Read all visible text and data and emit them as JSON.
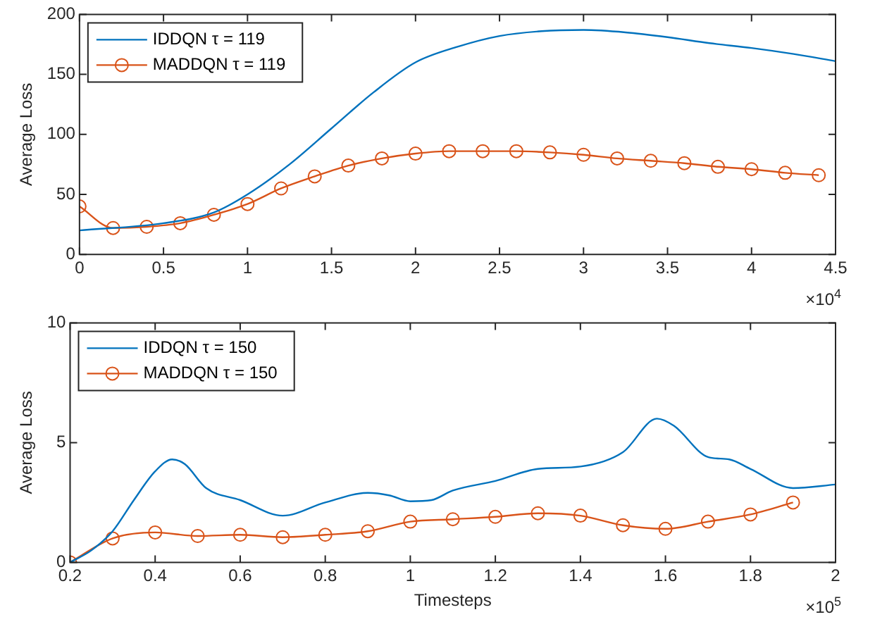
{
  "chart_data": [
    {
      "type": "line",
      "ylabel": "Average Loss",
      "xlim": [
        0,
        4.5
      ],
      "xticks": [
        0,
        0.5,
        1,
        1.5,
        2,
        2.5,
        3,
        3.5,
        4,
        4.5
      ],
      "ylim": [
        0,
        200
      ],
      "yticks": [
        0,
        50,
        100,
        150,
        200
      ],
      "grid": false,
      "legend": "top left",
      "annotations": [
        "×10$^{4}$"
      ],
      "series": [
        {
          "name": "IDDQN τ = 119",
          "color": "#0072bd",
          "marker": "none",
          "x": [
            0,
            0.5,
            0.8,
            1.0,
            1.25,
            1.5,
            1.75,
            2.0,
            2.25,
            2.5,
            2.75,
            3.0,
            3.25,
            3.5,
            3.75,
            4.0,
            4.25,
            4.5
          ],
          "values": [
            20,
            26,
            35,
            50,
            75,
            105,
            135,
            160,
            173,
            182,
            186,
            187,
            185,
            181,
            176,
            172,
            167,
            161
          ]
        },
        {
          "name": "MADDQN τ = 119",
          "color": "#d95319",
          "marker": "circle",
          "x": [
            0,
            0.2,
            0.4,
            0.6,
            0.8,
            1.0,
            1.2,
            1.4,
            1.6,
            1.8,
            2.0,
            2.2,
            2.4,
            2.6,
            2.8,
            3.0,
            3.2,
            3.4,
            3.6,
            3.8,
            4.0,
            4.2,
            4.4
          ],
          "values": [
            40,
            22,
            23,
            26,
            33,
            42,
            55,
            65,
            74,
            80,
            84,
            86,
            86,
            86,
            85,
            83,
            80,
            78,
            76,
            73,
            71,
            68,
            66
          ]
        }
      ]
    },
    {
      "type": "line",
      "xlabel": "Timesteps",
      "ylabel": "Average Loss",
      "xlim": [
        0.2,
        2
      ],
      "xticks": [
        0.2,
        0.4,
        0.6,
        0.8,
        1,
        1.2,
        1.4,
        1.6,
        1.8,
        2
      ],
      "ylim": [
        0,
        10
      ],
      "yticks": [
        0,
        5,
        10
      ],
      "grid": false,
      "legend": "top left",
      "annotations": [
        "×10$^{5}$"
      ],
      "series": [
        {
          "name": "IDDQN τ = 150",
          "color": "#0072bd",
          "marker": "none",
          "x": [
            0.2,
            0.25,
            0.3,
            0.35,
            0.4,
            0.44,
            0.47,
            0.52,
            0.6,
            0.7,
            0.8,
            0.9,
            0.95,
            1.0,
            1.05,
            1.1,
            1.2,
            1.3,
            1.4,
            1.5,
            1.58,
            1.62,
            1.7,
            1.75,
            1.8,
            1.9,
            2.0
          ],
          "values": [
            0,
            0.5,
            1.3,
            2.6,
            3.8,
            4.3,
            4.1,
            3.1,
            2.6,
            1.95,
            2.5,
            2.9,
            2.8,
            2.55,
            2.6,
            3.0,
            3.4,
            3.9,
            4.0,
            4.6,
            6.0,
            5.7,
            4.4,
            4.3,
            3.9,
            3.1,
            3.25
          ]
        },
        {
          "name": "MADDQN τ = 150",
          "color": "#d95319",
          "marker": "circle",
          "x": [
            0.2,
            0.3,
            0.4,
            0.5,
            0.6,
            0.7,
            0.8,
            0.9,
            1.0,
            1.1,
            1.2,
            1.3,
            1.4,
            1.5,
            1.6,
            1.7,
            1.8,
            1.9
          ],
          "values": [
            0,
            1.0,
            1.25,
            1.1,
            1.15,
            1.05,
            1.15,
            1.3,
            1.7,
            1.8,
            1.9,
            2.05,
            1.95,
            1.55,
            1.4,
            1.7,
            2.0,
            2.5
          ]
        }
      ]
    }
  ]
}
